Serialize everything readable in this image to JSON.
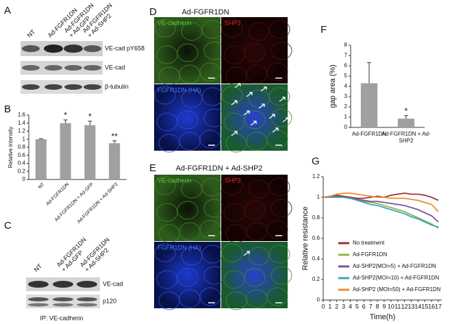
{
  "panels": {
    "A": {
      "letter": "A",
      "lanes": [
        [
          "NT"
        ],
        [
          "Ad-FGFR1DN"
        ],
        [
          "Ad-FGFR1DN",
          "+ Ad-GFP"
        ],
        [
          "Ad-FGFR1DN",
          "+ Ad-SHP2"
        ]
      ],
      "bands": [
        "VE-cad pY658",
        "VE-cad",
        "β-tubulin"
      ]
    },
    "B": {
      "letter": "B"
    },
    "C": {
      "letter": "C",
      "lanes": [
        [
          "NT"
        ],
        [
          "Ad-FGFR1DN",
          "+ Ad-GFP"
        ],
        [
          "Ad-FGFR1DN",
          "+ Ad-SHP2"
        ]
      ],
      "bands": [
        "VE-cad",
        "p120"
      ],
      "footer": "IP: VE-cadherin"
    },
    "D": {
      "letter": "D",
      "title": "Ad-FGFR1DN",
      "channels": [
        "VE-cadherin",
        "SHP2",
        "FGFR1DN (HA)"
      ]
    },
    "E": {
      "letter": "E",
      "title": "Ad-FGFR1DN + Ad-SHP2",
      "channels": [
        "VE-cadherin",
        "SHP2",
        "FGFR1DN (HA)"
      ]
    },
    "F": {
      "letter": "F"
    },
    "G": {
      "letter": "G"
    }
  },
  "chart_data": [
    {
      "type": "bar",
      "ylabel": "Relative intensity",
      "categories": [
        "NT",
        "Ad-FGFR1DN",
        "Ad-FGFR1DN + Ad-GFP",
        "Ad-FGFR1DN + Ad-SHP2"
      ],
      "values": [
        1.0,
        1.4,
        1.35,
        0.9
      ],
      "errors": [
        0.01,
        0.08,
        0.1,
        0.06
      ],
      "annotations": [
        null,
        "*",
        "*",
        "**"
      ],
      "color": "#a0a0a0",
      "ylim": [
        0,
        1.6
      ],
      "yticks": [
        0,
        0.2,
        0.4,
        0.6,
        0.8,
        1,
        1.2,
        1.4,
        1.6
      ],
      "rotated_labels": true
    },
    {
      "type": "bar",
      "ylabel": "gap area (%)",
      "categories": [
        "Ad-FGFR1DN",
        "Ad-FGFR1DN + Ad-SHP2"
      ],
      "values": [
        4.3,
        0.85
      ],
      "errors": [
        2.0,
        0.3
      ],
      "annotations": [
        null,
        "*"
      ],
      "color": "#a0a0a0",
      "ylim": [
        0,
        8
      ],
      "yticks": [
        0,
        1,
        2,
        3,
        4,
        5,
        6,
        7,
        8
      ],
      "rotated_labels": false
    },
    {
      "type": "line",
      "xlabel": "Time(h)",
      "ylabel": "Relative resistance",
      "x": [
        0,
        1,
        2,
        3,
        4,
        5,
        6,
        7,
        8,
        9,
        10,
        11,
        12,
        13,
        14,
        15,
        16,
        17
      ],
      "xlim": [
        0,
        17.5
      ],
      "xticks": [
        0,
        1,
        2,
        3,
        4,
        5,
        6,
        7,
        8,
        9,
        10,
        11,
        12,
        13,
        14,
        15,
        16,
        17
      ],
      "ylim": [
        0,
        1.2
      ],
      "yticks": [
        0,
        0.2,
        0.4,
        0.6,
        0.8,
        1,
        1.2
      ],
      "series": [
        {
          "name": "No treatment",
          "color": "#a0302c",
          "values": [
            1,
            1.01,
            1.02,
            1.01,
            1.0,
            0.99,
            0.99,
            1.0,
            1.01,
            1.0,
            1.02,
            1.03,
            1.04,
            1.03,
            1.03,
            1.02,
            1.0,
            0.97
          ]
        },
        {
          "name": "Ad-FGFR1DN",
          "color": "#8db548",
          "values": [
            1,
            1.0,
            1.0,
            1.0,
            0.99,
            0.98,
            0.96,
            0.95,
            0.94,
            0.92,
            0.9,
            0.88,
            0.86,
            0.83,
            0.8,
            0.77,
            0.74,
            0.7
          ]
        },
        {
          "name": "Ad-SHP2(MOI=5) + Ad-FGFR1DN",
          "color": "#7a52a0",
          "values": [
            1,
            1.0,
            1.01,
            1.0,
            0.99,
            0.98,
            0.97,
            0.96,
            0.96,
            0.95,
            0.94,
            0.93,
            0.92,
            0.9,
            0.88,
            0.85,
            0.82,
            0.76
          ]
        },
        {
          "name": "Ad-SHP2(MOI=10) + Ad-FGFR1DN",
          "color": "#3aa6be",
          "values": [
            1,
            1.0,
            1.0,
            1.0,
            0.99,
            0.97,
            0.95,
            0.93,
            0.92,
            0.9,
            0.88,
            0.86,
            0.84,
            0.81,
            0.79,
            0.76,
            0.73,
            0.71
          ]
        },
        {
          "name": "Ad-SHP2 (MOI=50) + Ad-FGFR1DN",
          "color": "#f08a30",
          "values": [
            1,
            1.01,
            1.03,
            1.04,
            1.04,
            1.03,
            1.02,
            1.01,
            1.0,
            1.0,
            0.99,
            0.99,
            0.99,
            0.98,
            0.97,
            0.95,
            0.93,
            0.86
          ]
        }
      ]
    }
  ]
}
